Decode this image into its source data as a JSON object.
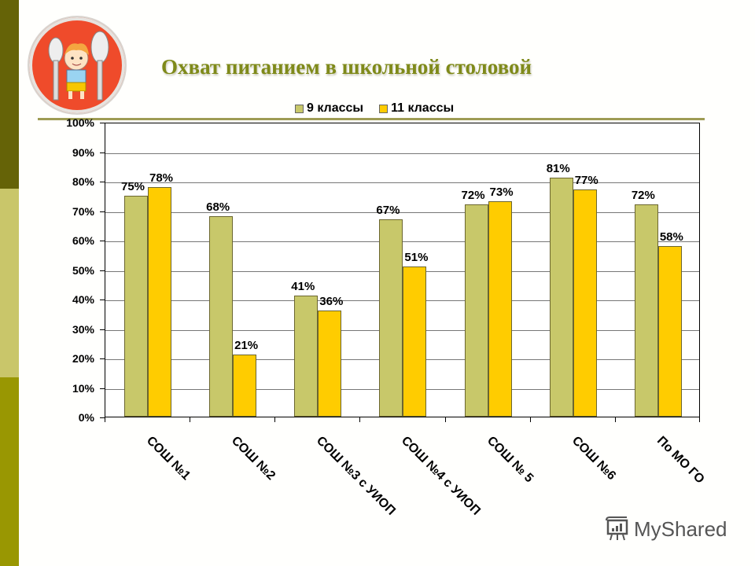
{
  "slide": {
    "title": "Охват питанием в школьной столовой",
    "sidebar_colors": [
      "#656307",
      "#c9c66a",
      "#999702"
    ],
    "logo": {
      "icon": "child-with-fork-and-spoon-icon",
      "bg_color": "#ef4b2b"
    },
    "watermark": {
      "icon": "presentation-board-icon",
      "text": "MyShared"
    }
  },
  "legend": [
    {
      "label": "9 классы",
      "color": "#c8c86a"
    },
    {
      "label": "11 классы",
      "color": "#ffcc00"
    }
  ],
  "chart_data": {
    "type": "bar",
    "title": "Охват питанием в школьной столовой",
    "xlabel": "",
    "ylabel": "",
    "ylim": [
      0,
      100
    ],
    "yticks": [
      "0%",
      "10%",
      "20%",
      "30%",
      "40%",
      "50%",
      "60%",
      "70%",
      "80%",
      "90%",
      "100%"
    ],
    "grid": true,
    "legend_position": "top",
    "categories": [
      "СОШ №1",
      "СОШ №2",
      "СОШ №3 с УИОП",
      "СОШ №4 с УИОП",
      "СОШ № 5",
      "СОШ №6",
      "По МО ГО"
    ],
    "series": [
      {
        "name": "9 классы",
        "color": "#c8c86a",
        "values": [
          75,
          68,
          41,
          67,
          72,
          81,
          72
        ],
        "labels": [
          "75%",
          "68%",
          "41%",
          "67%",
          "72%",
          "81%",
          "72%"
        ]
      },
      {
        "name": "11 классы",
        "color": "#ffcc00",
        "values": [
          78,
          21,
          36,
          51,
          73,
          77,
          58
        ],
        "labels": [
          "78%",
          "21%",
          "36%",
          "51%",
          "73%",
          "77%",
          "58%"
        ]
      }
    ]
  }
}
